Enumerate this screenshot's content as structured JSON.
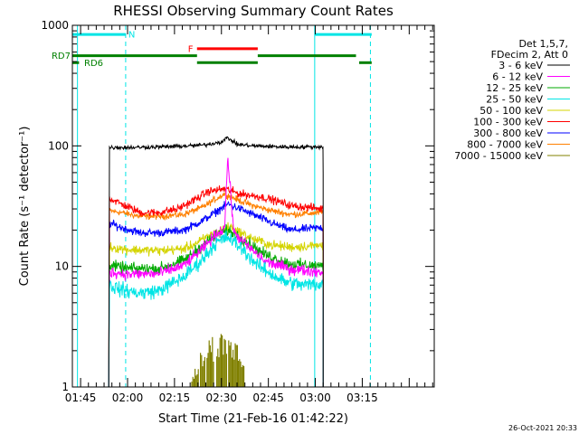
{
  "chart_data": {
    "type": "line",
    "title": "RHESSI Observing Summary Count Rates",
    "xlabel": "Start Time (21-Feb-16 01:42:22)",
    "ylabel": "Count Rate (s⁻¹ detector⁻¹)",
    "x_tick_labels": [
      "01:45",
      "02:00",
      "02:15",
      "02:30",
      "02:45",
      "03:00",
      "03:15"
    ],
    "x_ticks_minutes": [
      105,
      120,
      135,
      150,
      165,
      180,
      195
    ],
    "xlim_minutes": [
      102.37,
      218.0
    ],
    "y_scale": "log",
    "ylim": [
      1,
      1000
    ],
    "y_tick_labels": [
      "1",
      "10",
      "100",
      "1000"
    ],
    "legend_header": [
      "Det 1,5,7,",
      "FDecim 2, Att 0"
    ],
    "data_start_minute": 114.0,
    "data_end_minute": 182.5,
    "series": [
      {
        "name": "3 - 6 keV",
        "color": "#000000",
        "x": [
          114,
          120,
          130,
          140,
          145,
          150,
          152,
          155,
          160,
          170,
          182.5
        ],
        "values": [
          97,
          97,
          98,
          100,
          102,
          108,
          117,
          103,
          100,
          98,
          98
        ]
      },
      {
        "name": "6 - 12 keV",
        "color": "#ff00ff",
        "x": [
          114,
          120,
          130,
          138,
          144,
          148,
          151,
          152,
          154,
          158,
          164,
          172,
          182.5
        ],
        "values": [
          9.0,
          8.6,
          8.7,
          10.2,
          14,
          18,
          21,
          80,
          19,
          15,
          11,
          9.5,
          9.0
        ]
      },
      {
        "name": "12 - 25 keV",
        "color": "#00aa00",
        "x": [
          114,
          120,
          130,
          138,
          144,
          148,
          152,
          156,
          164,
          172,
          182.5
        ],
        "values": [
          10.2,
          9.6,
          9.6,
          11.2,
          15,
          18,
          20,
          17.5,
          12.5,
          10.5,
          10.0
        ]
      },
      {
        "name": "25 - 50 keV",
        "color": "#00e5e5",
        "x": [
          114,
          118,
          124,
          130,
          138,
          144,
          148,
          152,
          156,
          162,
          170,
          176,
          182.5
        ],
        "values": [
          7.0,
          6.4,
          6.0,
          6.3,
          8.2,
          11.5,
          15.5,
          17.5,
          14.5,
          10.0,
          7.5,
          7.0,
          7.2
        ]
      },
      {
        "name": "50 - 100 keV",
        "color": "#d4d400",
        "x": [
          114,
          120,
          130,
          138,
          142,
          146,
          150,
          153,
          156,
          160,
          166,
          172,
          182.5
        ],
        "values": [
          14.5,
          13.8,
          13.5,
          14.0,
          15.5,
          18.0,
          20.0,
          21.5,
          19.0,
          17.0,
          15.0,
          14.5,
          15.0
        ]
      },
      {
        "name": "100 - 300 keV",
        "color": "#ff0000",
        "x": [
          114,
          118,
          124,
          130,
          136,
          140,
          146,
          151,
          156,
          162,
          166,
          172,
          182.5
        ],
        "values": [
          37,
          33,
          28,
          28,
          30,
          34,
          42,
          44,
          40,
          38,
          36,
          32,
          30
        ]
      },
      {
        "name": "300 - 800 keV",
        "color": "#0000ff",
        "x": [
          114,
          118,
          124,
          130,
          138,
          144,
          148,
          152,
          156,
          160,
          166,
          172,
          182.5
        ],
        "values": [
          23,
          21,
          19,
          19,
          20,
          24,
          28,
          33,
          30,
          27,
          23,
          20,
          21
        ]
      },
      {
        "name": "800 - 7000 keV",
        "color": "#ff8000",
        "x": [
          114,
          118,
          124,
          130,
          138,
          144,
          148,
          151,
          156,
          160,
          166,
          172,
          182.5
        ],
        "values": [
          29,
          28,
          26,
          26,
          27,
          31,
          36,
          40,
          35,
          32,
          29,
          27,
          28
        ]
      },
      {
        "name": "7000 - 15000 keV",
        "color": "#808000",
        "x": [
          140.5,
          143,
          146,
          149,
          152,
          155,
          157.5
        ],
        "values": [
          1.2,
          1.9,
          2.6,
          2.9,
          2.8,
          2.4,
          1.6
        ]
      }
    ],
    "state_bars": [
      {
        "label": "N",
        "color": "#00e5e5",
        "level": 840,
        "segments": [
          [
            102.5,
            119.4
          ],
          [
            179.8,
            198.0
          ]
        ]
      },
      {
        "label": "F",
        "color": "#ff0000",
        "level": 640,
        "segments": [
          [
            142.2,
            161.6
          ]
        ]
      },
      {
        "label": "RD7",
        "color": "#008000",
        "level": 560,
        "segments": [
          [
            102.5,
            142.2
          ],
          [
            161.6,
            193.0
          ]
        ]
      },
      {
        "label": "RD6",
        "color": "#008000",
        "level": 490,
        "segments": [
          [
            102.5,
            104.5
          ],
          [
            142.2,
            161.6
          ],
          [
            194.0,
            198.0
          ]
        ]
      }
    ],
    "vertical_markers": {
      "solid_cyan_minutes": [
        104.0,
        179.8
      ],
      "dashed_cyan_minutes": [
        119.4,
        197.6
      ]
    },
    "timestamp": "26-Oct-2021 20:33"
  }
}
